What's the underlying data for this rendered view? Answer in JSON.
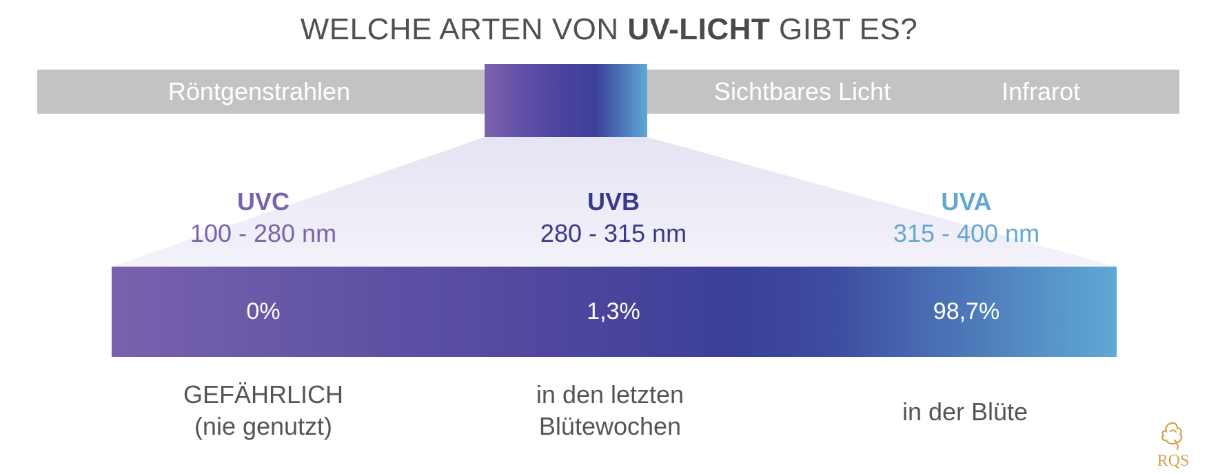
{
  "title": {
    "prefix": "WELCHE ARTEN VON ",
    "highlight": "UV-LICHT",
    "suffix": " GIBT ES?"
  },
  "spectrum": {
    "left_label": "Röntgenstrahlen",
    "visible_label": "Sichtbares Licht",
    "infrared_label": "Infrarot"
  },
  "uv_types": [
    {
      "name": "UVC",
      "range": "100 - 280 nm",
      "share": "0%",
      "usage_line1": "GEFÄHRLICH",
      "usage_line2": "(nie genutzt)"
    },
    {
      "name": "UVB",
      "range": "280 - 315 nm",
      "share": "1,3%",
      "usage_line1": "in den letzten",
      "usage_line2": "Blütewochen"
    },
    {
      "name": "UVA",
      "range": "315 - 400 nm",
      "share": "98,7%",
      "usage_line1": "in der Blüte",
      "usage_line2": ""
    }
  ],
  "colors": {
    "uvc": "#7a62ad",
    "uvb": "#38398c",
    "uva": "#62a7d2",
    "spectrum_bar": "#c3c3c3"
  },
  "logo": {
    "text": "RQS",
    "icon": "lion-logo-icon"
  }
}
